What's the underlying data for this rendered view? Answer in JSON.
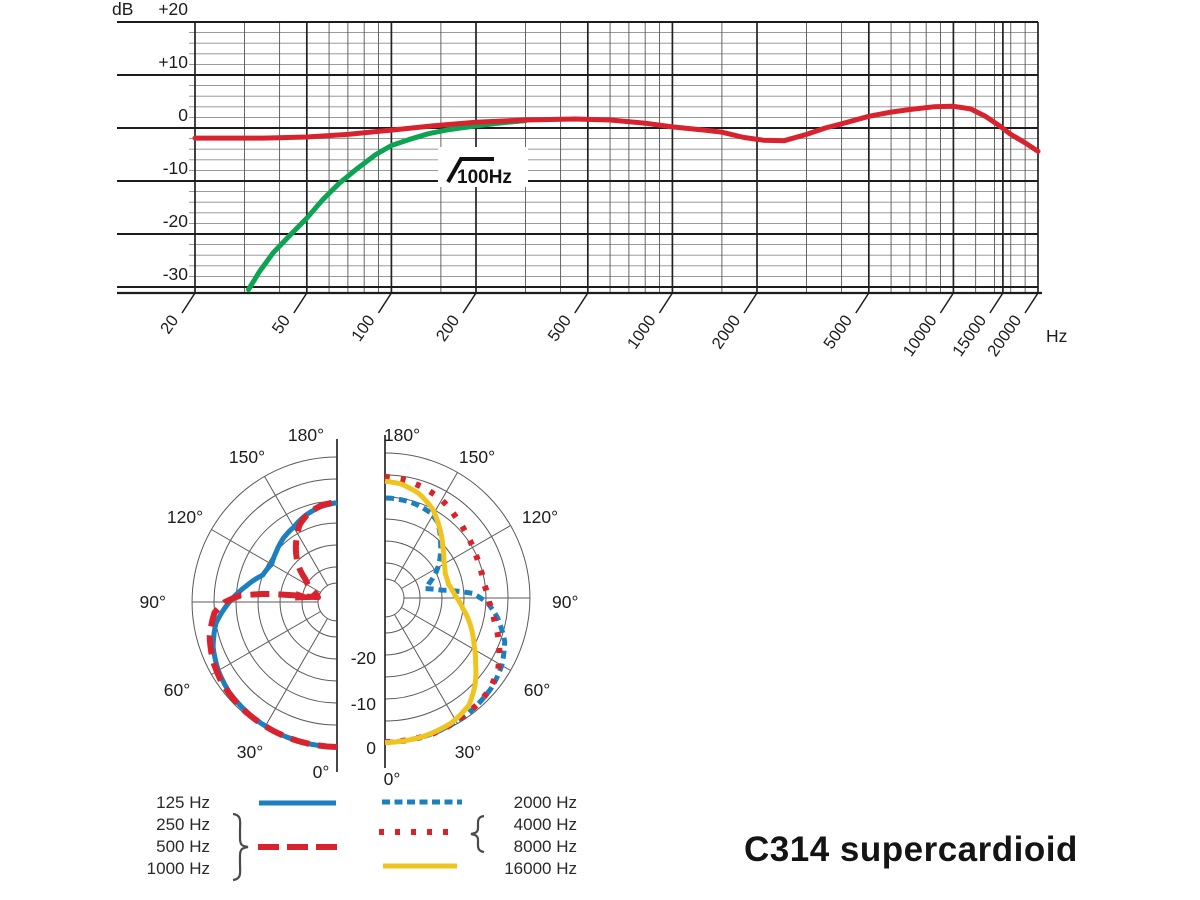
{
  "title": "C314 supercardioid",
  "chart_data": [
    {
      "type": "line",
      "name": "frequency-response-chart",
      "ylabel": "dB",
      "x_unit_label": "Hz",
      "x_scale": "log",
      "xlim": [
        20,
        20000
      ],
      "ylim": [
        -31,
        20
      ],
      "yticks": [
        20,
        10,
        0,
        -10,
        -20,
        -30
      ],
      "ytick_labels": [
        "+20",
        "+10",
        "0",
        "-10",
        "-20",
        "-30"
      ],
      "xticks": [
        20,
        50,
        100,
        200,
        500,
        1000,
        2000,
        5000,
        10000,
        15000,
        20000
      ],
      "xtick_labels": [
        "20",
        "50",
        "100",
        "200",
        "500",
        "1000",
        "2000",
        "5000",
        "10000",
        "15000",
        "20000"
      ],
      "minor_x": [
        30,
        40,
        60,
        70,
        80,
        90,
        150,
        300,
        400,
        600,
        700,
        800,
        900,
        1500,
        3000,
        4000,
        6000,
        7000,
        8000,
        9000,
        12000,
        14000,
        16000,
        18000
      ],
      "minor_y_step": 2,
      "grid": true,
      "annotation": {
        "label": "100Hz",
        "symbol": "high-pass-filter"
      },
      "series": [
        {
          "name": "bass-cut-filter-100hz",
          "color": "#0ca352",
          "points": [
            [
              31,
              -30.5
            ],
            [
              34,
              -27
            ],
            [
              38,
              -23.5
            ],
            [
              44,
              -20
            ],
            [
              50,
              -17
            ],
            [
              57,
              -13.5
            ],
            [
              65,
              -10.5
            ],
            [
              75,
              -7.8
            ],
            [
              88,
              -5
            ],
            [
              100,
              -3.3
            ],
            [
              115,
              -2.2
            ],
            [
              135,
              -1.1
            ],
            [
              160,
              -0.3
            ],
            [
              200,
              0.4
            ],
            [
              250,
              1.0
            ],
            [
              300,
              1.4
            ]
          ]
        },
        {
          "name": "frequency-response",
          "color": "#d8232e",
          "points": [
            [
              20,
              -1.9
            ],
            [
              35,
              -1.9
            ],
            [
              50,
              -1.7
            ],
            [
              70,
              -1.2
            ],
            [
              100,
              -0.4
            ],
            [
              140,
              0.4
            ],
            [
              200,
              1.1
            ],
            [
              300,
              1.5
            ],
            [
              450,
              1.7
            ],
            [
              600,
              1.5
            ],
            [
              800,
              0.9
            ],
            [
              1000,
              0.2
            ],
            [
              1300,
              -0.4
            ],
            [
              1500,
              -0.8
            ],
            [
              1800,
              -1.8
            ],
            [
              2100,
              -2.3
            ],
            [
              2500,
              -2.4
            ],
            [
              3000,
              -1.2
            ],
            [
              3500,
              0
            ],
            [
              4000,
              0.8
            ],
            [
              5000,
              2.2
            ],
            [
              6000,
              3.0
            ],
            [
              7000,
              3.5
            ],
            [
              8500,
              4.0
            ],
            [
              10000,
              4.1
            ],
            [
              11500,
              3.6
            ],
            [
              13000,
              2.2
            ],
            [
              14500,
              0.5
            ],
            [
              16000,
              -1.2
            ],
            [
              18000,
              -2.8
            ],
            [
              20000,
              -4.4
            ]
          ]
        }
      ]
    },
    {
      "type": "polar",
      "name": "polar-pattern-chart",
      "db_per_ring": 5,
      "ring_count": 6,
      "radial_axis_labels": [
        "0",
        "-10",
        "-20"
      ],
      "angle_labels": [
        "0°",
        "30°",
        "60°",
        "90°",
        "120°",
        "150°",
        "180°"
      ],
      "halves": [
        {
          "side": "left",
          "series": [
            {
              "name": "125 Hz",
              "color": "#1b7fc0",
              "style": "solid",
              "points": [
                [
                  0,
                  0
                ],
                [
                  20,
                  -0.2
                ],
                [
                  35,
                  -0.5
                ],
                [
                  50,
                  -1
                ],
                [
                  60,
                  -1.8
                ],
                [
                  70,
                  -3
                ],
                [
                  80,
                  -5
                ],
                [
                  90,
                  -8.5
                ],
                [
                  100,
                  -12
                ],
                [
                  110,
                  -15
                ],
                [
                  120,
                  -15.8
                ],
                [
                  130,
                  -15
                ],
                [
                  140,
                  -14
                ],
                [
                  150,
                  -13.3
                ],
                [
                  160,
                  -12
                ],
                [
                  170,
                  -11
                ],
                [
                  180,
                  -10.4
                ]
              ]
            },
            {
              "name": "250/500/1000 Hz",
              "color": "#d8232e",
              "style": "long-dash",
              "null_arrow_deg": 98,
              "points": [
                [
                  0,
                  0
                ],
                [
                  20,
                  -0.2
                ],
                [
                  40,
                  -0.5
                ],
                [
                  55,
                  -1
                ],
                [
                  65,
                  -1.8
                ],
                [
                  75,
                  -3
                ],
                [
                  85,
                  -5
                ],
                [
                  90,
                  -7.5
                ],
                [
                  94,
                  -11
                ],
                [
                  97,
                  -18
                ],
                [
                  100,
                  -26
                ],
                [
                  104,
                  -28.5
                ],
                [
                  110,
                  -28
                ],
                [
                  118,
                  -26
                ],
                [
                  126,
                  -24
                ],
                [
                  133,
                  -21
                ],
                [
                  140,
                  -18.5
                ],
                [
                  147,
                  -16
                ],
                [
                  154,
                  -13.5
                ],
                [
                  162,
                  -11.8
                ],
                [
                  170,
                  -10.8
                ],
                [
                  180,
                  -10.2
                ]
              ]
            }
          ]
        },
        {
          "side": "right",
          "series": [
            {
              "name": "2000 Hz",
              "color": "#1b7fc0",
              "style": "dash",
              "points": [
                [
                  0,
                  -0.2
                ],
                [
                  20,
                  -0.3
                ],
                [
                  35,
                  -0.6
                ],
                [
                  50,
                  -1.3
                ],
                [
                  60,
                  -2.3
                ],
                [
                  70,
                  -4
                ],
                [
                  80,
                  -7
                ],
                [
                  87,
                  -9.5
                ],
                [
                  93,
                  -13
                ],
                [
                  98,
                  -20
                ],
                [
                  103,
                  -23.5
                ],
                [
                  108,
                  -22.5
                ],
                [
                  115,
                  -20.5
                ],
                [
                  122,
                  -18.5
                ],
                [
                  130,
                  -16.5
                ],
                [
                  137,
                  -14.5
                ],
                [
                  145,
                  -12
                ],
                [
                  152,
                  -11
                ],
                [
                  162,
                  -10.5
                ],
                [
                  172,
                  -10.3
                ],
                [
                  180,
                  -10.2
                ]
              ]
            },
            {
              "name": "4000/8000 Hz",
              "color": "#d8232e",
              "style": "dot",
              "points": [
                [
                  0,
                  -0.2
                ],
                [
                  20,
                  -0.3
                ],
                [
                  35,
                  -0.7
                ],
                [
                  48,
                  -1.3
                ],
                [
                  58,
                  -2.6
                ],
                [
                  68,
                  -5
                ],
                [
                  78,
                  -7.5
                ],
                [
                  88,
                  -9.3
                ],
                [
                  98,
                  -10.2
                ],
                [
                  108,
                  -10.3
                ],
                [
                  118,
                  -10
                ],
                [
                  128,
                  -9.4
                ],
                [
                  138,
                  -8.6
                ],
                [
                  150,
                  -7.2
                ],
                [
                  162,
                  -6.3
                ],
                [
                  172,
                  -5.7
                ],
                [
                  180,
                  -5.4
                ]
              ]
            },
            {
              "name": "16000 Hz",
              "color": "#f0c41f",
              "style": "solid",
              "points": [
                [
                  0,
                  -0.1
                ],
                [
                  15,
                  -0.3
                ],
                [
                  28,
                  -0.8
                ],
                [
                  38,
                  -2
                ],
                [
                  46,
                  -4.5
                ],
                [
                  54,
                  -7.5
                ],
                [
                  62,
                  -10
                ],
                [
                  72,
                  -12.5
                ],
                [
                  82,
                  -15
                ],
                [
                  92,
                  -17
                ],
                [
                  102,
                  -18.2
                ],
                [
                  112,
                  -18.2
                ],
                [
                  122,
                  -17.2
                ],
                [
                  132,
                  -15.3
                ],
                [
                  142,
                  -12.8
                ],
                [
                  152,
                  -10
                ],
                [
                  162,
                  -8
                ],
                [
                  172,
                  -6.8
                ],
                [
                  180,
                  -6.4
                ]
              ]
            }
          ]
        }
      ]
    }
  ],
  "legend": {
    "rows_left": [
      "125 Hz",
      "250 Hz",
      "500 Hz",
      "1000 Hz"
    ],
    "rows_right": [
      "2000 Hz",
      "4000 Hz",
      "8000 Hz",
      "16000 Hz"
    ],
    "samples": [
      {
        "name": "sample-125hz",
        "color": "#1b7fc0",
        "dash": "",
        "width": 5,
        "x1": 259,
        "x2": 336,
        "y": 803
      },
      {
        "name": "sample-250-1000hz",
        "color": "#d8232e",
        "dash": "21 8",
        "width": 6,
        "x1": 258,
        "x2": 341,
        "y": 847
      },
      {
        "name": "sample-2000hz",
        "color": "#1b7fc0",
        "dash": "8 4.5",
        "width": 5,
        "x1": 382,
        "x2": 462,
        "y": 802
      },
      {
        "name": "sample-4000-8000hz",
        "color": "#d8232e",
        "dash": "5 11",
        "width": 6,
        "x1": 379,
        "x2": 459,
        "y": 832
      },
      {
        "name": "sample-16000hz",
        "color": "#f0c41f",
        "dash": "",
        "width": 5,
        "x1": 383,
        "x2": 457,
        "y": 866
      }
    ]
  }
}
